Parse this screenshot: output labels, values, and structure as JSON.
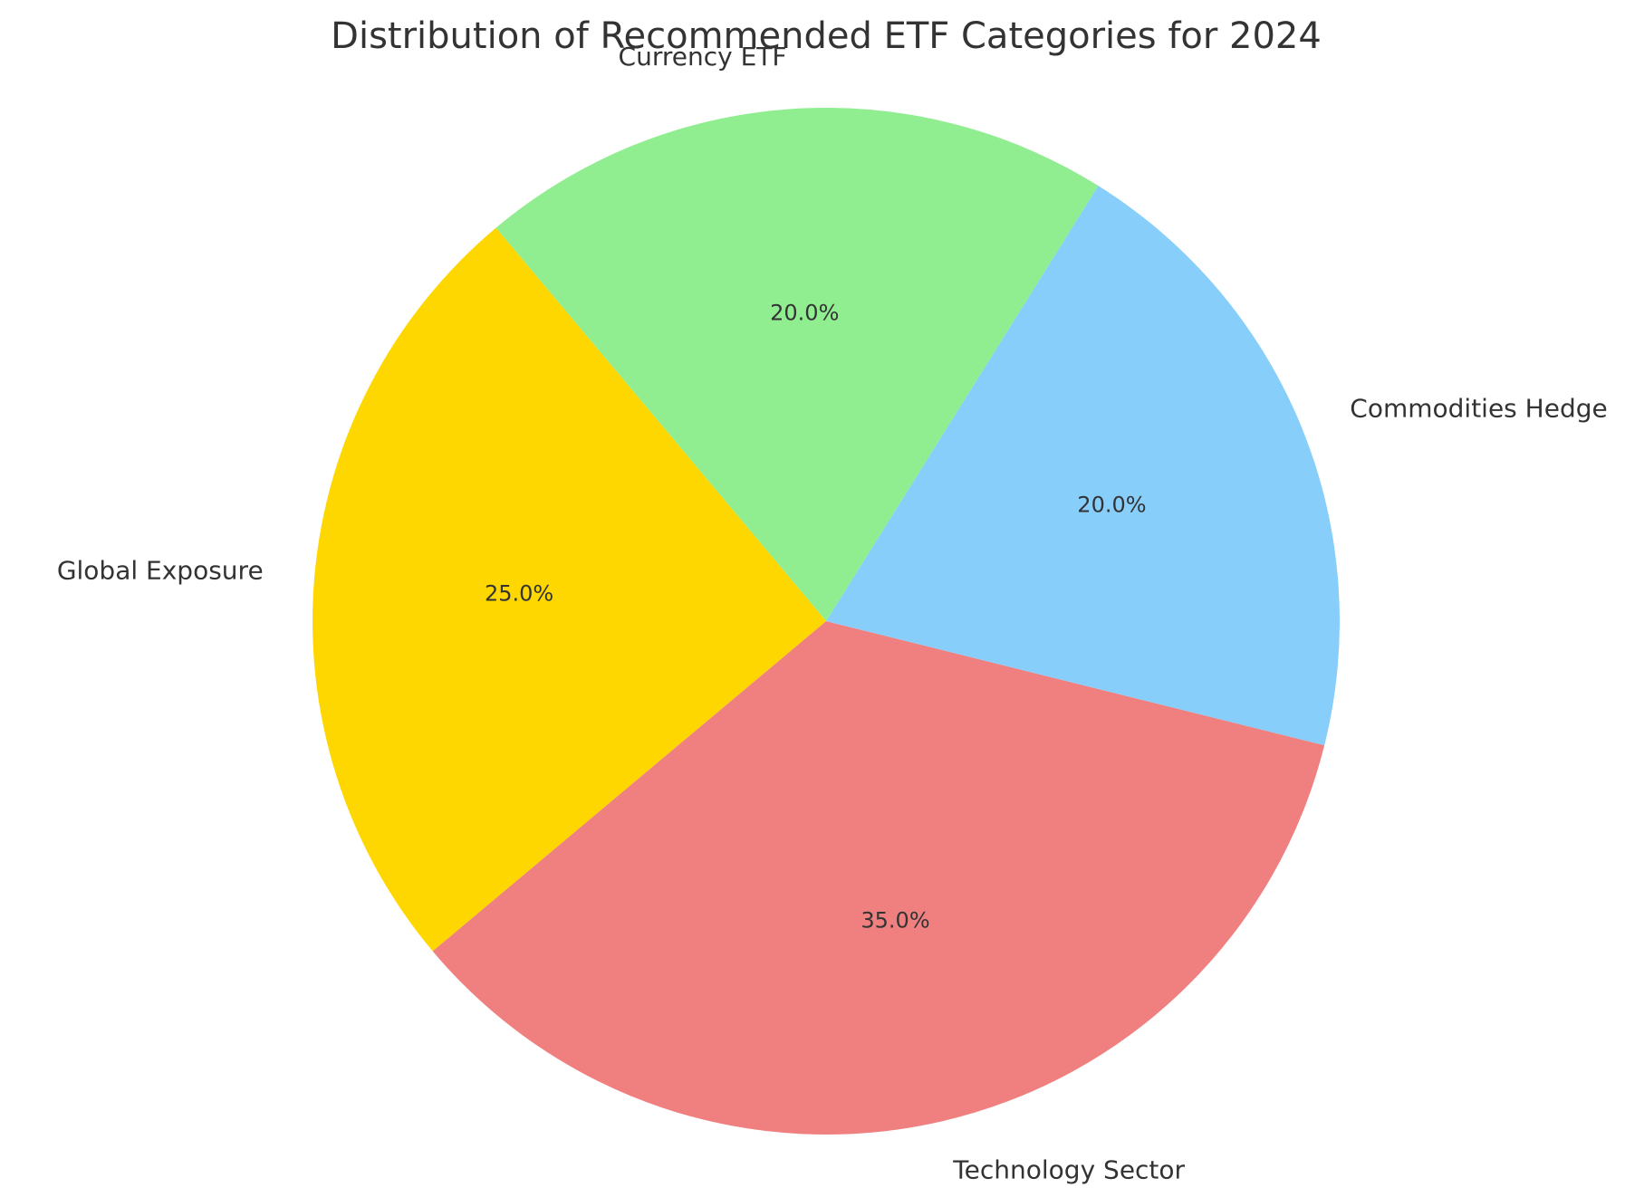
{
  "chart_data": {
    "type": "pie",
    "title": "Distribution of Recommended ETF Categories for 2024",
    "slices": [
      {
        "label": "Technology Sector",
        "value": 35.0,
        "pct_label": "35.0%",
        "color": "#F08080"
      },
      {
        "label": "Commodities Hedge",
        "value": 20.0,
        "pct_label": "20.0%",
        "color": "#87CEFA"
      },
      {
        "label": "Currency ETF",
        "value": 20.0,
        "pct_label": "20.0%",
        "color": "#90EE90"
      },
      {
        "label": "Global Exposure",
        "value": 25.0,
        "pct_label": "25.0%",
        "color": "#FFD700"
      }
    ],
    "start_angle_deg": 220,
    "direction": "counterclockwise"
  }
}
